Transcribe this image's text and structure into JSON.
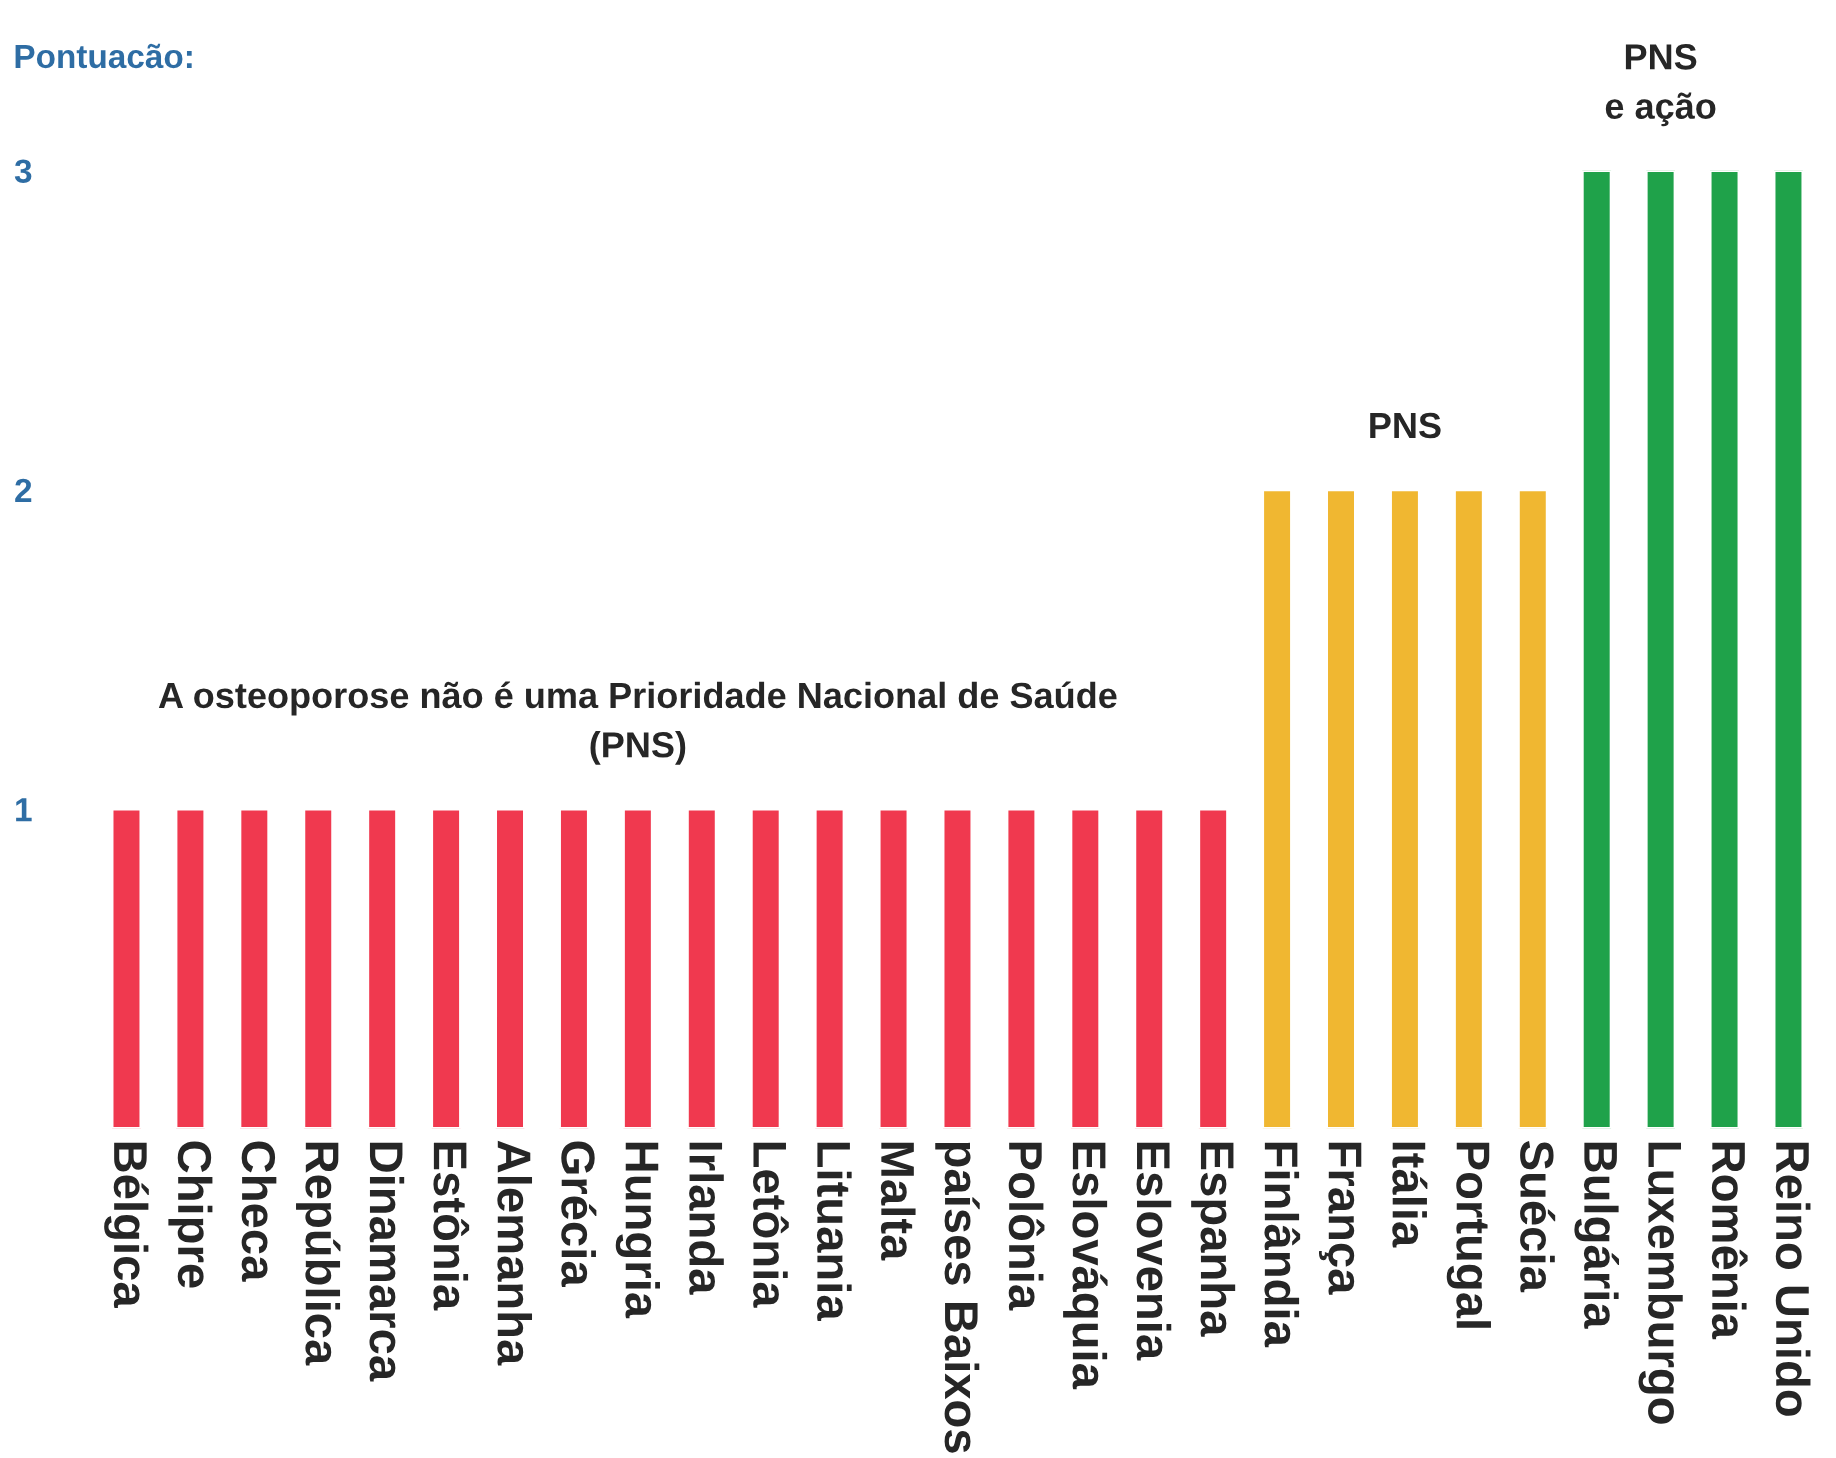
{
  "chart_data": {
    "type": "bar",
    "ylabel": "Pontuacão:",
    "categories": [
      "Bélgica",
      "Chipre",
      "Checa",
      "República",
      "Dinamarca",
      "Estônia",
      "Alemanha",
      "Grécia",
      "Hungria",
      "Irlanda",
      "Letônia",
      "Lituania",
      "Malta",
      "países Baixos",
      "Polônia",
      "Eslováquia",
      "Eslovenia",
      "Espanha",
      "Finlândia",
      "França",
      "Itália",
      "Portugal",
      "Suécia",
      "Bulgária",
      "Luxemburgo",
      "Romênia",
      "Reino Unido"
    ],
    "values": [
      1,
      1,
      1,
      1,
      1,
      1,
      1,
      1,
      1,
      1,
      1,
      1,
      1,
      1,
      1,
      1,
      1,
      1,
      2,
      2,
      2,
      2,
      2,
      3,
      3,
      3,
      3
    ],
    "colors": [
      "#f0394f",
      "#f0394f",
      "#f0394f",
      "#f0394f",
      "#f0394f",
      "#f0394f",
      "#f0394f",
      "#f0394f",
      "#f0394f",
      "#f0394f",
      "#f0394f",
      "#f0394f",
      "#f0394f",
      "#f0394f",
      "#f0394f",
      "#f0394f",
      "#f0394f",
      "#f0394f",
      "#f0b731",
      "#f0b731",
      "#f0b731",
      "#f0b731",
      "#f0b731",
      "#1fa24a",
      "#1fa24a",
      "#1fa24a",
      "#1fa24a"
    ],
    "ylim": [
      0,
      3
    ],
    "yticks": [
      1,
      2,
      3
    ],
    "grid": false,
    "annotations": [
      {
        "text": "A osteoporose não é uma Prioridade Nacional de Saúde\n(PNS)",
        "x": "Hungria",
        "y": 1
      },
      {
        "text": "PNS",
        "x": "Itália",
        "y": 2
      },
      {
        "text": "PNS\ne ação",
        "x": "Luxemburgo",
        "y": 3
      }
    ]
  }
}
